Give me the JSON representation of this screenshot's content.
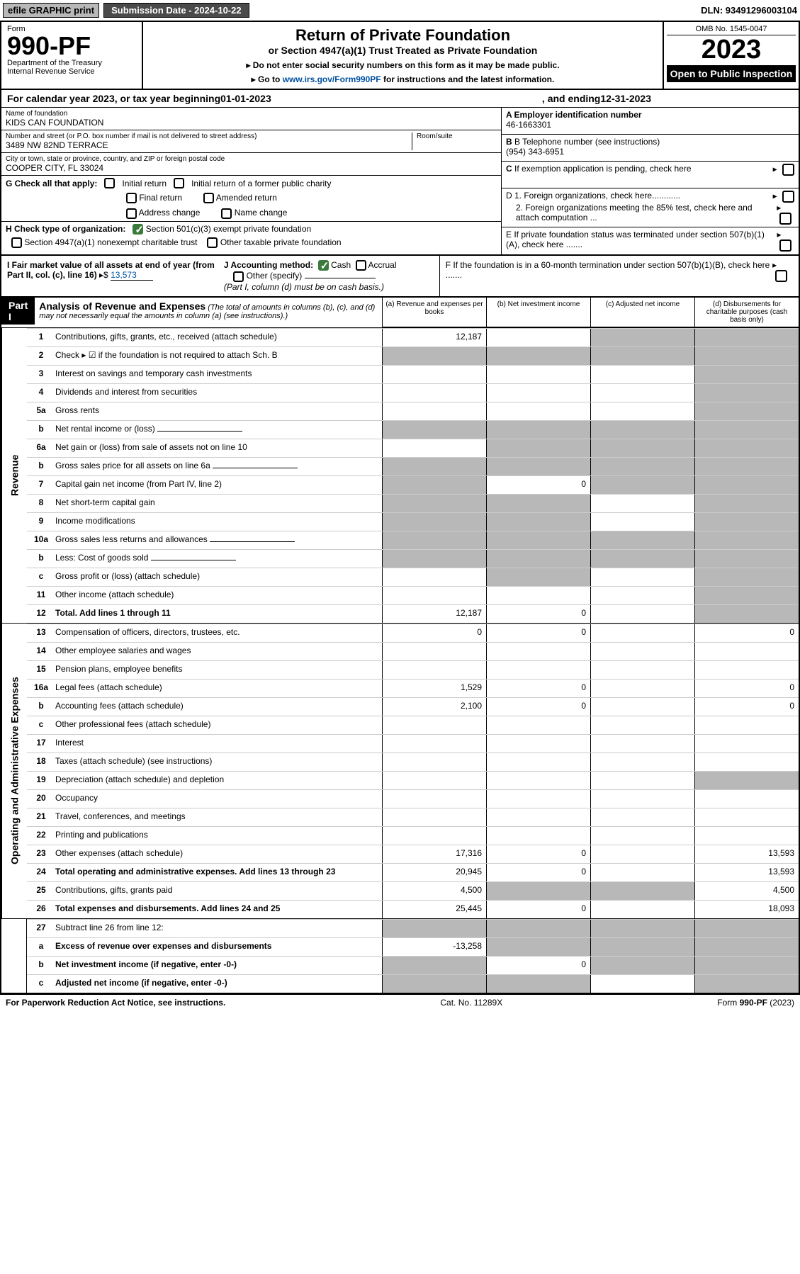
{
  "top": {
    "efile": "efile GRAPHIC print",
    "submission": "Submission Date - 2024-10-22",
    "dln": "DLN: 93491296003104"
  },
  "header": {
    "form_label": "Form",
    "form_number": "990-PF",
    "dept": "Department of the Treasury\nInternal Revenue Service",
    "title": "Return of Private Foundation",
    "subtitle": "or Section 4947(a)(1) Trust Treated as Private Foundation",
    "note1": "▸ Do not enter social security numbers on this form as it may be made public.",
    "note2_prefix": "▸ Go to ",
    "note2_link": "www.irs.gov/Form990PF",
    "note2_suffix": " for instructions and the latest information.",
    "omb": "OMB No. 1545-0047",
    "year": "2023",
    "open": "Open to Public Inspection"
  },
  "cal": {
    "prefix": "For calendar year 2023, or tax year beginning ",
    "begin": "01-01-2023",
    "mid": ", and ending ",
    "end": "12-31-2023"
  },
  "info": {
    "name_label": "Name of foundation",
    "name": "KIDS CAN FOUNDATION",
    "addr_label": "Number and street (or P.O. box number if mail is not delivered to street address)",
    "addr": "3489 NW 82ND TERRACE",
    "room_label": "Room/suite",
    "city_label": "City or town, state or province, country, and ZIP or foreign postal code",
    "city": "COOPER CITY, FL  33024",
    "a_label": "A Employer identification number",
    "a_val": "46-1663301",
    "b_label": "B Telephone number (see instructions)",
    "b_val": "(954) 343-6951",
    "c_label": "C If exemption application is pending, check here",
    "d1": "D 1. Foreign organizations, check here............",
    "d2": "2. Foreign organizations meeting the 85% test, check here and attach computation ...",
    "e": "E  If private foundation status was terminated under section 507(b)(1)(A), check here .......",
    "f": "F  If the foundation is in a 60-month termination under section 507(b)(1)(B), check here .......",
    "g_label": "G Check all that apply:",
    "g_opts": [
      "Initial return",
      "Initial return of a former public charity",
      "Final return",
      "Amended return",
      "Address change",
      "Name change"
    ],
    "h_label": "H Check type of organization:",
    "h_opts": [
      "Section 501(c)(3) exempt private foundation",
      "Section 4947(a)(1) nonexempt charitable trust",
      "Other taxable private foundation"
    ],
    "i_label": "I Fair market value of all assets at end of year (from Part II, col. (c), line 16)",
    "i_val": "13,573",
    "j_label": "J Accounting method:",
    "j_opts": [
      "Cash",
      "Accrual",
      "Other (specify)"
    ],
    "j_note": "(Part I, column (d) must be on cash basis.)"
  },
  "partI": {
    "label": "Part I",
    "title": "Analysis of Revenue and Expenses",
    "title_note": "(The total of amounts in columns (b), (c), and (d) may not necessarily equal the amounts in column (a) (see instructions).)",
    "cols": {
      "a": "(a)   Revenue and expenses per books",
      "b": "(b)   Net investment income",
      "c": "(c)   Adjusted net income",
      "d": "(d)   Disbursements for charitable purposes (cash basis only)"
    }
  },
  "sides": {
    "revenue": "Revenue",
    "expenses": "Operating and Administrative Expenses"
  },
  "lines": [
    {
      "n": "1",
      "d": "Contributions, gifts, grants, etc., received (attach schedule)",
      "a": "12,187",
      "b": "",
      "c": "sh",
      "dcol": "sh"
    },
    {
      "n": "2",
      "d": "Check ▸ ☑ if the foundation is not required to attach Sch. B",
      "a": "sh",
      "b": "sh",
      "c": "sh",
      "dcol": "sh",
      "nob": true
    },
    {
      "n": "3",
      "d": "Interest on savings and temporary cash investments",
      "a": "",
      "b": "",
      "c": "",
      "dcol": "sh"
    },
    {
      "n": "4",
      "d": "Dividends and interest from securities",
      "a": "",
      "b": "",
      "c": "",
      "dcol": "sh"
    },
    {
      "n": "5a",
      "d": "Gross rents",
      "a": "",
      "b": "",
      "c": "",
      "dcol": "sh"
    },
    {
      "n": "b",
      "d": "Net rental income or (loss)",
      "a": "sh",
      "b": "sh",
      "c": "sh",
      "dcol": "sh",
      "half": true
    },
    {
      "n": "6a",
      "d": "Net gain or (loss) from sale of assets not on line 10",
      "a": "",
      "b": "sh",
      "c": "sh",
      "dcol": "sh"
    },
    {
      "n": "b",
      "d": "Gross sales price for all assets on line 6a",
      "a": "sh",
      "b": "sh",
      "c": "sh",
      "dcol": "sh",
      "half": true
    },
    {
      "n": "7",
      "d": "Capital gain net income (from Part IV, line 2)",
      "a": "sh",
      "b": "0",
      "c": "sh",
      "dcol": "sh"
    },
    {
      "n": "8",
      "d": "Net short-term capital gain",
      "a": "sh",
      "b": "sh",
      "c": "",
      "dcol": "sh"
    },
    {
      "n": "9",
      "d": "Income modifications",
      "a": "sh",
      "b": "sh",
      "c": "",
      "dcol": "sh"
    },
    {
      "n": "10a",
      "d": "Gross sales less returns and allowances",
      "a": "sh",
      "b": "sh",
      "c": "sh",
      "dcol": "sh",
      "half": true
    },
    {
      "n": "b",
      "d": "Less: Cost of goods sold",
      "a": "sh",
      "b": "sh",
      "c": "sh",
      "dcol": "sh",
      "half": true
    },
    {
      "n": "c",
      "d": "Gross profit or (loss) (attach schedule)",
      "a": "",
      "b": "sh",
      "c": "",
      "dcol": "sh"
    },
    {
      "n": "11",
      "d": "Other income (attach schedule)",
      "a": "",
      "b": "",
      "c": "",
      "dcol": "sh"
    },
    {
      "n": "12",
      "d": "Total. Add lines 1 through 11",
      "a": "12,187",
      "b": "0",
      "c": "",
      "dcol": "sh",
      "bold": true
    }
  ],
  "exp_lines": [
    {
      "n": "13",
      "d": "Compensation of officers, directors, trustees, etc.",
      "a": "0",
      "b": "0",
      "c": "",
      "dcol": "0"
    },
    {
      "n": "14",
      "d": "Other employee salaries and wages",
      "a": "",
      "b": "",
      "c": "",
      "dcol": ""
    },
    {
      "n": "15",
      "d": "Pension plans, employee benefits",
      "a": "",
      "b": "",
      "c": "",
      "dcol": ""
    },
    {
      "n": "16a",
      "d": "Legal fees (attach schedule)",
      "a": "1,529",
      "b": "0",
      "c": "",
      "dcol": "0"
    },
    {
      "n": "b",
      "d": "Accounting fees (attach schedule)",
      "a": "2,100",
      "b": "0",
      "c": "",
      "dcol": "0"
    },
    {
      "n": "c",
      "d": "Other professional fees (attach schedule)",
      "a": "",
      "b": "",
      "c": "",
      "dcol": ""
    },
    {
      "n": "17",
      "d": "Interest",
      "a": "",
      "b": "",
      "c": "",
      "dcol": ""
    },
    {
      "n": "18",
      "d": "Taxes (attach schedule) (see instructions)",
      "a": "",
      "b": "",
      "c": "",
      "dcol": ""
    },
    {
      "n": "19",
      "d": "Depreciation (attach schedule) and depletion",
      "a": "",
      "b": "",
      "c": "",
      "dcol": "sh"
    },
    {
      "n": "20",
      "d": "Occupancy",
      "a": "",
      "b": "",
      "c": "",
      "dcol": ""
    },
    {
      "n": "21",
      "d": "Travel, conferences, and meetings",
      "a": "",
      "b": "",
      "c": "",
      "dcol": ""
    },
    {
      "n": "22",
      "d": "Printing and publications",
      "a": "",
      "b": "",
      "c": "",
      "dcol": ""
    },
    {
      "n": "23",
      "d": "Other expenses (attach schedule)",
      "a": "17,316",
      "b": "0",
      "c": "",
      "dcol": "13,593"
    },
    {
      "n": "24",
      "d": "Total operating and administrative expenses. Add lines 13 through 23",
      "a": "20,945",
      "b": "0",
      "c": "",
      "dcol": "13,593",
      "bold": true
    },
    {
      "n": "25",
      "d": "Contributions, gifts, grants paid",
      "a": "4,500",
      "b": "sh",
      "c": "sh",
      "dcol": "4,500"
    },
    {
      "n": "26",
      "d": "Total expenses and disbursements. Add lines 24 and 25",
      "a": "25,445",
      "b": "0",
      "c": "",
      "dcol": "18,093",
      "bold": true
    }
  ],
  "bottom_lines": [
    {
      "n": "27",
      "d": "Subtract line 26 from line 12:",
      "a": "sh",
      "b": "sh",
      "c": "sh",
      "dcol": "sh"
    },
    {
      "n": "a",
      "d": "Excess of revenue over expenses and disbursements",
      "a": "-13,258",
      "b": "sh",
      "c": "sh",
      "dcol": "sh",
      "bold": true
    },
    {
      "n": "b",
      "d": "Net investment income (if negative, enter -0-)",
      "a": "sh",
      "b": "0",
      "c": "sh",
      "dcol": "sh",
      "bold": true
    },
    {
      "n": "c",
      "d": "Adjusted net income (if negative, enter -0-)",
      "a": "sh",
      "b": "sh",
      "c": "",
      "dcol": "sh",
      "bold": true
    }
  ],
  "footer": {
    "left": "For Paperwork Reduction Act Notice, see instructions.",
    "mid": "Cat. No. 11289X",
    "right": "Form 990-PF (2023)"
  }
}
